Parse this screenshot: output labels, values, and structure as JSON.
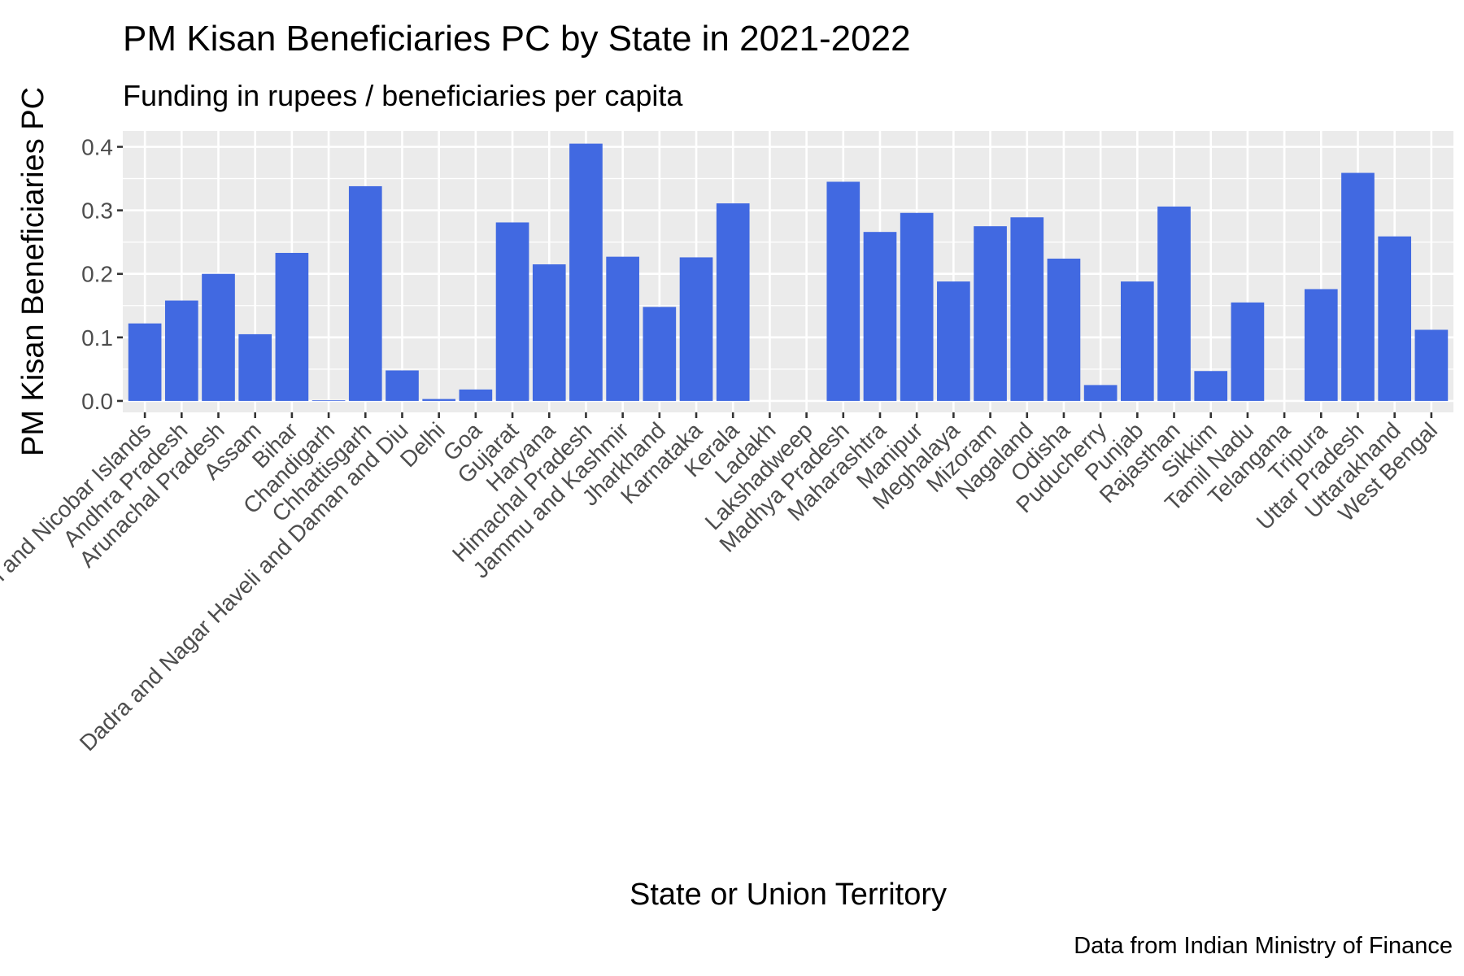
{
  "chart_data": {
    "type": "bar",
    "title": "PM Kisan Beneficiaries PC by State in 2021-2022",
    "subtitle": "Funding in rupees / beneficiaries per capita",
    "xlabel": "State or Union Territory",
    "ylabel": "PM Kisan Beneficiaries PC",
    "caption": "Data from Indian Ministry of Finance",
    "ylim": [
      -0.018,
      0.425
    ],
    "yticks": [
      0.0,
      0.1,
      0.2,
      0.3,
      0.4
    ],
    "ytick_labels": [
      "0.0",
      "0.1",
      "0.2",
      "0.3",
      "0.4"
    ],
    "grid": true,
    "legend": "none",
    "bar_color": "#4169E1",
    "panel_color": "#EBEBEB",
    "categories": [
      "Andaman and Nicobar Islands",
      "Andhra Pradesh",
      "Arunachal Pradesh",
      "Assam",
      "Bihar",
      "Chandigarh",
      "Chhattisgarh",
      "Dadra and Nagar Haveli and Daman and Diu",
      "Delhi",
      "Goa",
      "Gujarat",
      "Haryana",
      "Himachal Pradesh",
      "Jammu and Kashmir",
      "Jharkhand",
      "Karnataka",
      "Kerala",
      "Ladakh",
      "Lakshadweep",
      "Madhya Pradesh",
      "Maharashtra",
      "Manipur",
      "Meghalaya",
      "Mizoram",
      "Nagaland",
      "Odisha",
      "Puducherry",
      "Punjab",
      "Rajasthan",
      "Sikkim",
      "Tamil Nadu",
      "Telangana",
      "Tripura",
      "Uttar Pradesh",
      "Uttarakhand",
      "West Bengal"
    ],
    "values": [
      0.122,
      0.158,
      0.2,
      0.105,
      0.233,
      0.001,
      0.338,
      0.048,
      0.003,
      0.018,
      0.281,
      0.215,
      0.405,
      0.227,
      0.148,
      0.226,
      0.311,
      0.0,
      0.0,
      0.345,
      0.266,
      0.296,
      0.188,
      0.275,
      0.289,
      0.224,
      0.025,
      0.188,
      0.306,
      0.047,
      0.155,
      0.0,
      0.176,
      0.359,
      0.259,
      0.112
    ]
  }
}
